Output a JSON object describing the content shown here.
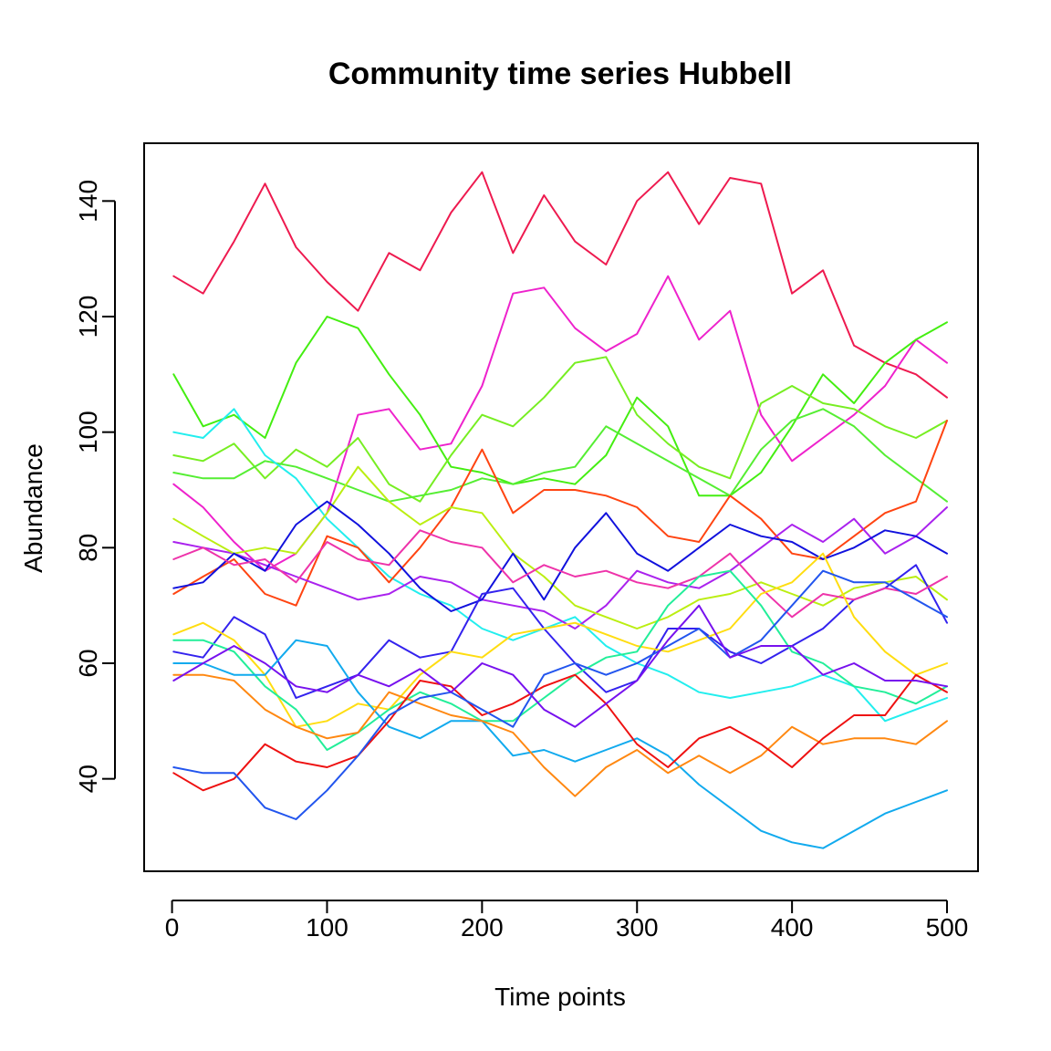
{
  "chart_data": {
    "type": "line",
    "title": "Community time series Hubbell",
    "xlabel": "Time points",
    "ylabel": "Abundance",
    "xlim": [
      -18,
      520
    ],
    "ylim": [
      24,
      150
    ],
    "xticks": [
      0,
      100,
      200,
      300,
      400,
      500
    ],
    "yticks": [
      40,
      60,
      80,
      100,
      120,
      140
    ],
    "grid": false,
    "legend": "none",
    "x": [
      1,
      20,
      40,
      60,
      80,
      100,
      120,
      140,
      160,
      180,
      200,
      220,
      240,
      260,
      280,
      300,
      320,
      340,
      360,
      380,
      400,
      420,
      440,
      460,
      480,
      500
    ],
    "series": [
      {
        "color": "#ee1a4f",
        "values": [
          127,
          124,
          133,
          143,
          132,
          126,
          121,
          131,
          128,
          138,
          145,
          131,
          141,
          133,
          129,
          140,
          145,
          136,
          144,
          143,
          124,
          128,
          115,
          112,
          110,
          106
        ]
      },
      {
        "color": "#ee22cc",
        "values": [
          91,
          87,
          81,
          76,
          79,
          86,
          103,
          104,
          97,
          98,
          108,
          124,
          125,
          118,
          114,
          117,
          127,
          116,
          121,
          103,
          95,
          99,
          103,
          108,
          116,
          112
        ]
      },
      {
        "color": "#44ee11",
        "values": [
          110,
          101,
          103,
          99,
          112,
          120,
          118,
          110,
          103,
          94,
          93,
          91,
          92,
          91,
          96,
          106,
          101,
          89,
          89,
          93,
          101,
          110,
          105,
          112,
          116,
          119
        ]
      },
      {
        "color": "#77ee22",
        "values": [
          96,
          95,
          98,
          92,
          97,
          94,
          99,
          91,
          88,
          96,
          103,
          101,
          106,
          112,
          113,
          103,
          98,
          94,
          92,
          105,
          108,
          105,
          104,
          101,
          99,
          102
        ]
      },
      {
        "color": "#55ee33",
        "values": [
          93,
          92,
          92,
          95,
          94,
          92,
          90,
          88,
          89,
          90,
          92,
          91,
          93,
          94,
          101,
          98,
          95,
          92,
          89,
          97,
          102,
          104,
          101,
          96,
          92,
          88
        ]
      },
      {
        "color": "#22eeee",
        "values": [
          100,
          99,
          104,
          96,
          92,
          85,
          80,
          75,
          72,
          70,
          66,
          64,
          66,
          68,
          63,
          60,
          58,
          55,
          54,
          55,
          56,
          58,
          56,
          50,
          52,
          54
        ]
      },
      {
        "color": "#ff4411",
        "values": [
          72,
          75,
          78,
          72,
          70,
          82,
          80,
          74,
          80,
          87,
          97,
          86,
          90,
          90,
          89,
          87,
          82,
          81,
          89,
          85,
          79,
          78,
          82,
          86,
          88,
          102
        ]
      },
      {
        "color": "#aa22ee",
        "values": [
          81,
          80,
          79,
          77,
          75,
          73,
          71,
          72,
          75,
          74,
          71,
          70,
          69,
          66,
          70,
          76,
          74,
          73,
          76,
          80,
          84,
          81,
          85,
          79,
          82,
          87
        ]
      },
      {
        "color": "#bbee11",
        "values": [
          85,
          82,
          79,
          80,
          79,
          86,
          94,
          88,
          84,
          87,
          86,
          79,
          75,
          70,
          68,
          66,
          68,
          71,
          72,
          74,
          72,
          70,
          73,
          74,
          75,
          71
        ]
      },
      {
        "color": "#1111dd",
        "values": [
          73,
          74,
          79,
          76,
          84,
          88,
          84,
          79,
          73,
          69,
          71,
          79,
          71,
          80,
          86,
          79,
          76,
          80,
          84,
          82,
          81,
          78,
          80,
          83,
          82,
          79
        ]
      },
      {
        "color": "#3322ee",
        "values": [
          62,
          61,
          68,
          65,
          54,
          56,
          58,
          64,
          61,
          62,
          72,
          73,
          66,
          60,
          55,
          57,
          66,
          66,
          62,
          60,
          63,
          66,
          71,
          73,
          77,
          67
        ]
      },
      {
        "color": "#ee33aa",
        "values": [
          78,
          80,
          77,
          78,
          74,
          81,
          78,
          77,
          83,
          81,
          80,
          74,
          77,
          75,
          76,
          74,
          73,
          75,
          79,
          73,
          68,
          72,
          71,
          73,
          72,
          75
        ]
      },
      {
        "color": "#ffdd11",
        "values": [
          65,
          67,
          64,
          58,
          49,
          50,
          53,
          52,
          58,
          62,
          61,
          65,
          66,
          67,
          65,
          63,
          62,
          64,
          66,
          72,
          74,
          79,
          68,
          62,
          58,
          60
        ]
      },
      {
        "color": "#22ee99",
        "values": [
          64,
          64,
          62,
          56,
          52,
          45,
          48,
          52,
          55,
          53,
          50,
          50,
          54,
          58,
          61,
          62,
          70,
          75,
          76,
          70,
          62,
          60,
          56,
          55,
          53,
          56
        ]
      },
      {
        "color": "#11aaee",
        "values": [
          60,
          60,
          58,
          58,
          64,
          63,
          55,
          49,
          47,
          50,
          50,
          44,
          45,
          43,
          45,
          47,
          44,
          39,
          35,
          31,
          29,
          28,
          31,
          34,
          36,
          38
        ]
      },
      {
        "color": "#ff8811",
        "values": [
          58,
          58,
          57,
          52,
          49,
          47,
          48,
          55,
          53,
          51,
          50,
          48,
          42,
          37,
          42,
          45,
          41,
          44,
          41,
          44,
          49,
          46,
          47,
          47,
          46,
          50
        ]
      },
      {
        "color": "#ee1111",
        "values": [
          41,
          38,
          40,
          46,
          43,
          42,
          44,
          50,
          57,
          56,
          51,
          53,
          56,
          58,
          53,
          46,
          42,
          47,
          49,
          46,
          42,
          47,
          51,
          51,
          58,
          55
        ]
      },
      {
        "color": "#2255ee",
        "values": [
          42,
          41,
          41,
          35,
          33,
          38,
          44,
          51,
          54,
          55,
          52,
          49,
          58,
          60,
          58,
          60,
          63,
          66,
          61,
          64,
          70,
          76,
          74,
          74,
          71,
          68
        ]
      },
      {
        "color": "#7711ee",
        "values": [
          57,
          60,
          63,
          60,
          56,
          55,
          58,
          56,
          59,
          55,
          60,
          58,
          52,
          49,
          53,
          57,
          64,
          70,
          61,
          63,
          63,
          58,
          60,
          57,
          57,
          56
        ]
      }
    ]
  }
}
